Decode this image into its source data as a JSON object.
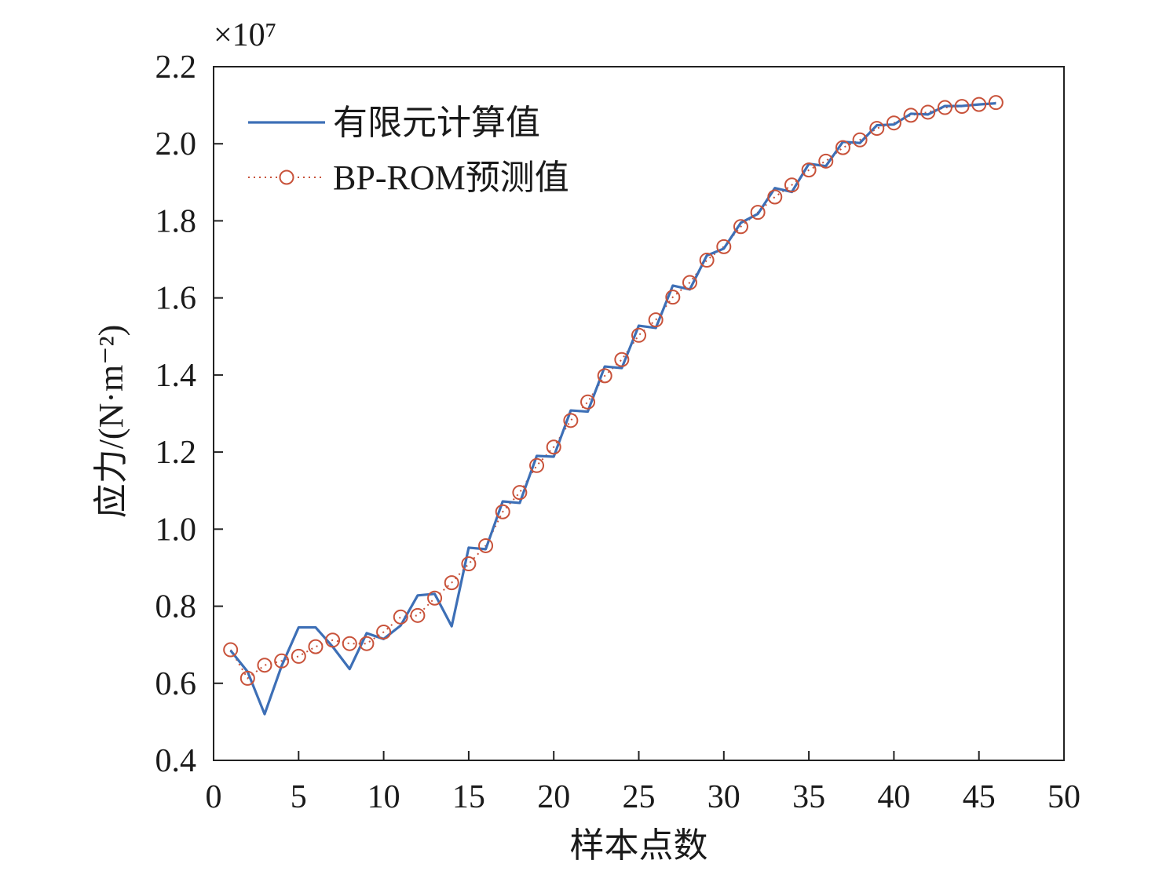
{
  "chart_data": {
    "type": "line",
    "title": "",
    "xlabel": "样本点数",
    "ylabel": "应力/(N·m⁻²)",
    "y_scale_label": "×10⁷",
    "y_multiplier": 10000000,
    "xlim": [
      0,
      50
    ],
    "ylim": [
      0.4,
      2.2
    ],
    "x_ticks": [
      0,
      5,
      10,
      15,
      20,
      25,
      30,
      35,
      40,
      45,
      50
    ],
    "y_ticks": [
      "0.4",
      "0.6",
      "0.8",
      "1.0",
      "1.2",
      "1.4",
      "1.6",
      "1.8",
      "2.0",
      "2.2"
    ],
    "grid": false,
    "legend_position": "top-left",
    "x": [
      1,
      2,
      3,
      4,
      5,
      6,
      7,
      8,
      9,
      10,
      11,
      12,
      13,
      14,
      15,
      16,
      17,
      18,
      19,
      20,
      21,
      22,
      23,
      24,
      25,
      26,
      27,
      28,
      29,
      30,
      31,
      32,
      33,
      34,
      35,
      36,
      37,
      38,
      39,
      40,
      41,
      42,
      43,
      44,
      45,
      46
    ],
    "series": [
      {
        "name": "有限元计算值",
        "style": "solid",
        "color": "#3d6fb6",
        "values": [
          0.685,
          0.63,
          0.52,
          0.645,
          0.745,
          0.745,
          0.695,
          0.637,
          0.73,
          0.715,
          0.75,
          0.828,
          0.832,
          0.748,
          0.952,
          0.948,
          1.072,
          1.068,
          1.19,
          1.188,
          1.308,
          1.305,
          1.422,
          1.418,
          1.528,
          1.522,
          1.632,
          1.622,
          1.71,
          1.728,
          1.795,
          1.818,
          1.885,
          1.875,
          1.948,
          1.942,
          2.005,
          2.002,
          2.048,
          2.05,
          2.078,
          2.076,
          2.098,
          2.098,
          2.102,
          2.105
        ]
      },
      {
        "name": "BP-ROM预测值",
        "style": "dotted-circle",
        "color": "#c8523a",
        "values": [
          0.687,
          0.613,
          0.647,
          0.658,
          0.67,
          0.695,
          0.712,
          0.703,
          0.703,
          0.733,
          0.772,
          0.776,
          0.821,
          0.861,
          0.91,
          0.957,
          1.045,
          1.095,
          1.165,
          1.213,
          1.282,
          1.33,
          1.398,
          1.44,
          1.503,
          1.543,
          1.602,
          1.64,
          1.698,
          1.733,
          1.785,
          1.822,
          1.862,
          1.893,
          1.932,
          1.955,
          1.99,
          2.01,
          2.04,
          2.054,
          2.074,
          2.082,
          2.094,
          2.097,
          2.102,
          2.107
        ]
      }
    ]
  }
}
